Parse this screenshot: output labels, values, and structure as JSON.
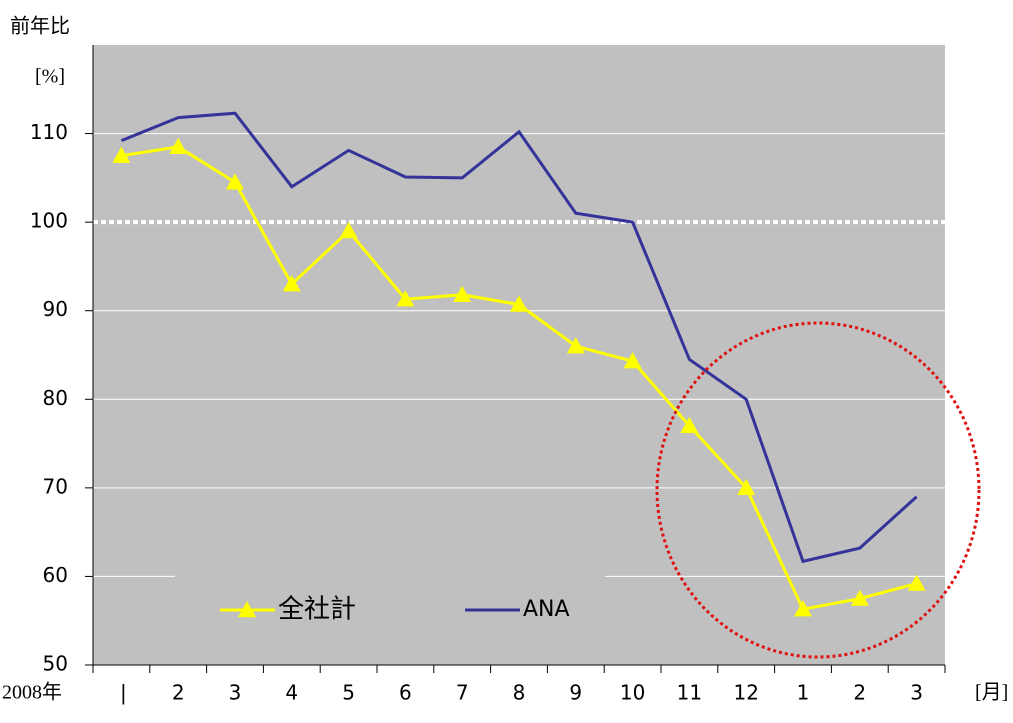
{
  "chart_data": {
    "type": "line",
    "y_label": "前年比",
    "y_unit": "[%]",
    "x_prefix": "2008年",
    "x_unit": "[月]",
    "categories": [
      null,
      "2",
      "3",
      "4",
      "5",
      "6",
      "7",
      "8",
      "9",
      "10",
      "11",
      "12",
      "1",
      "2",
      "3"
    ],
    "series": [
      {
        "name": "全社計",
        "color": "#ffff00",
        "marker": "triangle",
        "values": [
          107.5,
          108.5,
          104.5,
          93,
          99,
          91.3,
          91.8,
          90.7,
          86,
          84.3,
          77,
          70,
          56.3,
          57.5,
          59.2
        ]
      },
      {
        "name": "ANA",
        "color": "#333399",
        "values": [
          109.2,
          111.8,
          112.3,
          104,
          108.1,
          105.1,
          105,
          110.2,
          101,
          100,
          84.5,
          80,
          61.7,
          63.2,
          69
        ]
      }
    ],
    "ylim": [
      50,
      120
    ],
    "yticks": [
      50,
      60,
      70,
      80,
      90,
      100,
      110
    ],
    "grid": true,
    "reference_line": 100
  }
}
